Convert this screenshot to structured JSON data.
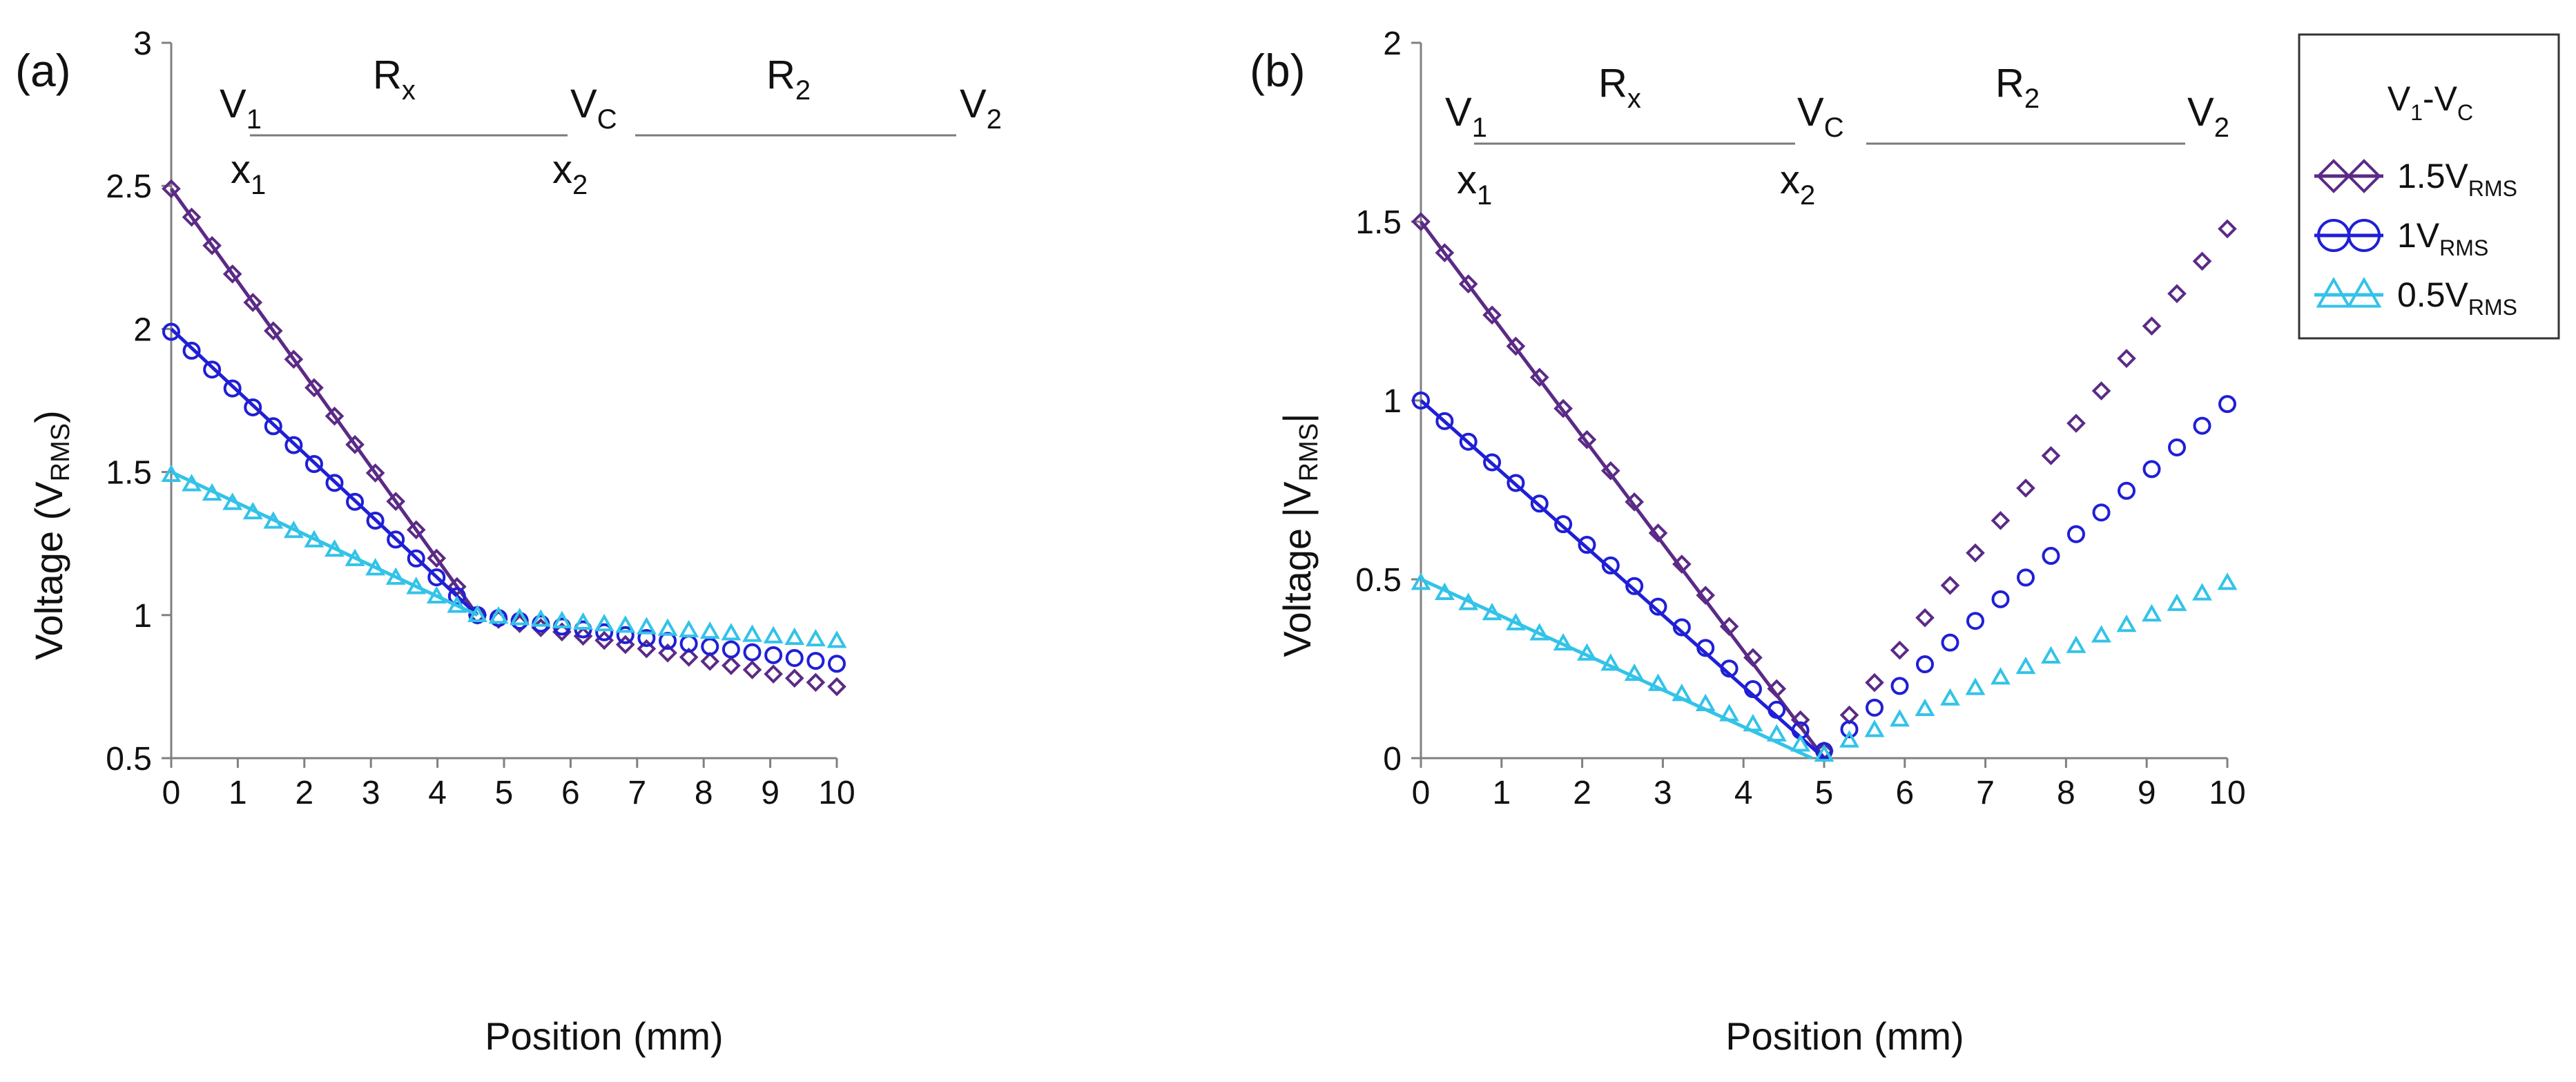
{
  "figure": {
    "legend": {
      "title": "V",
      "title_sub1": "1",
      "title_mid": "-V",
      "title_sub2": "C",
      "entries": [
        {
          "prefix": "1.5V",
          "sub": "RMS",
          "marker": "diamond",
          "color": "#5b2a86"
        },
        {
          "prefix": "1V",
          "sub": "RMS",
          "marker": "circle",
          "color": "#1f1fd6"
        },
        {
          "prefix": "0.5V",
          "sub": "RMS",
          "marker": "triangle",
          "color": "#33c3e8"
        }
      ]
    },
    "diagram": {
      "v1": "V",
      "v1_sub": "1",
      "rx": "R",
      "rx_sub": "x",
      "vc": "V",
      "vc_sub": "C",
      "r2": "R",
      "r2_sub": "2",
      "v2": "V",
      "v2_sub": "2",
      "x1": "x",
      "x1_sub": "1",
      "x2": "x",
      "x2_sub": "2"
    }
  },
  "chart_data": [
    {
      "panel_label": "(a)",
      "type": "scatter",
      "xlabel": "Position (mm)",
      "ylabel_main": "Voltage (V",
      "ylabel_sub": "RMS",
      "ylabel_end": ")",
      "xlim": [
        0,
        10
      ],
      "ylim": [
        0.5,
        3
      ],
      "xticks": [
        0,
        1,
        2,
        3,
        4,
        5,
        6,
        7,
        8,
        9,
        10
      ],
      "yticks": [
        0.5,
        1,
        1.5,
        2,
        2.5,
        3
      ],
      "ytick_labels": [
        "0.5",
        "1",
        "1.5",
        "2",
        "2.5",
        "3"
      ],
      "junction_x": 4.6,
      "series": [
        {
          "name": "1.5VRMS",
          "marker": "diamond",
          "color": "#5b2a86",
          "fit_line": [
            [
              0,
              2.49
            ],
            [
              4.6,
              1.0
            ]
          ],
          "left": {
            "start": 2.49,
            "end": 1.0
          },
          "right": {
            "start": 1.0,
            "end": 0.75
          }
        },
        {
          "name": "1VRMS",
          "marker": "circle",
          "color": "#1f1fd6",
          "fit_line": [
            [
              0,
              2.0
            ],
            [
              4.6,
              1.0
            ]
          ],
          "left": {
            "start": 1.99,
            "end": 1.0
          },
          "right": {
            "start": 1.0,
            "end": 0.83
          }
        },
        {
          "name": "0.5VRMS",
          "marker": "triangle",
          "color": "#33c3e8",
          "fit_line": [
            [
              0,
              1.5
            ],
            [
              4.6,
              1.0
            ]
          ],
          "left": {
            "start": 1.49,
            "end": 1.0
          },
          "right": {
            "start": 1.0,
            "end": 0.91
          }
        }
      ]
    },
    {
      "panel_label": "(b)",
      "type": "scatter",
      "xlabel": "Position (mm)",
      "ylabel_main": "Voltage |V",
      "ylabel_sub": "RMS",
      "ylabel_end": "|",
      "xlim": [
        0,
        10
      ],
      "ylim": [
        0,
        2
      ],
      "xticks": [
        0,
        1,
        2,
        3,
        4,
        5,
        6,
        7,
        8,
        9,
        10
      ],
      "yticks": [
        0,
        0.5,
        1,
        1.5,
        2
      ],
      "ytick_labels": [
        "0",
        "0.5",
        "1",
        "1.5",
        "2"
      ],
      "junction_x": 5.0,
      "series": [
        {
          "name": "1.5VRMS",
          "marker": "diamond",
          "color": "#5b2a86",
          "fit_line": [
            [
              0,
              1.5
            ],
            [
              5.0,
              0.0
            ]
          ],
          "left": {
            "start": 1.5,
            "end": 0.02
          },
          "right": {
            "start": 0.03,
            "end": 1.48
          }
        },
        {
          "name": "1VRMS",
          "marker": "circle",
          "color": "#1f1fd6",
          "fit_line": [
            [
              0,
              1.0
            ],
            [
              5.0,
              0.0
            ]
          ],
          "left": {
            "start": 1.0,
            "end": 0.02
          },
          "right": {
            "start": 0.02,
            "end": 0.99
          }
        },
        {
          "name": "0.5VRMS",
          "marker": "triangle",
          "color": "#33c3e8",
          "fit_line": [
            [
              0,
              0.5
            ],
            [
              4.85,
              0.0
            ]
          ],
          "left": {
            "start": 0.49,
            "end": 0.01
          },
          "right": {
            "start": 0.02,
            "end": 0.49
          }
        }
      ]
    }
  ]
}
